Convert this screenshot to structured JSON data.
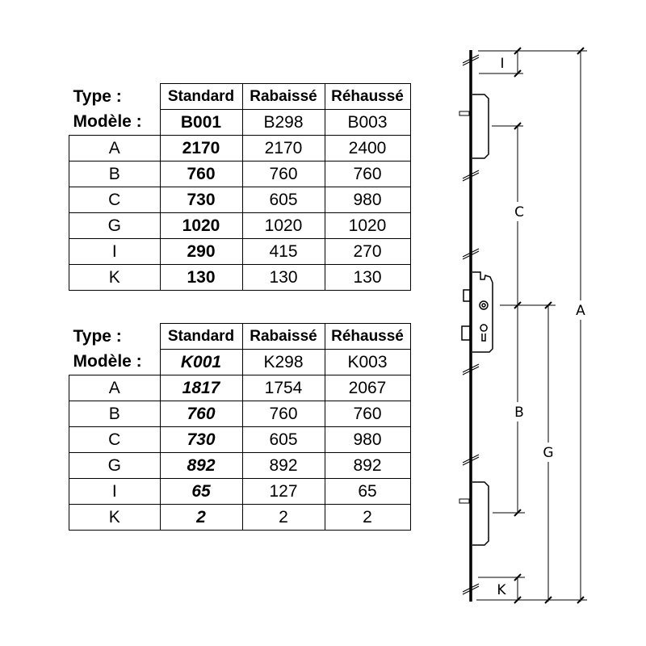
{
  "tables": [
    {
      "type_label": "Type :",
      "model_label": "Modèle :",
      "types": [
        "Standard",
        "Rabaissé",
        "Réhaussé"
      ],
      "models": [
        "B001",
        "B298",
        "B003"
      ],
      "rows": [
        {
          "dim": "A",
          "values": [
            "2170",
            "2170",
            "2400"
          ]
        },
        {
          "dim": "B",
          "values": [
            "760",
            "760",
            "760"
          ]
        },
        {
          "dim": "C",
          "values": [
            "730",
            "605",
            "980"
          ]
        },
        {
          "dim": "G",
          "values": [
            "1020",
            "1020",
            "1020"
          ]
        },
        {
          "dim": "I",
          "values": [
            "290",
            "415",
            "270"
          ]
        },
        {
          "dim": "K",
          "values": [
            "130",
            "130",
            "130"
          ]
        }
      ]
    },
    {
      "type_label": "Type :",
      "model_label": "Modèle :",
      "types": [
        "Standard",
        "Rabaissé",
        "Réhaussé"
      ],
      "models": [
        "K001",
        "K298",
        "K003"
      ],
      "rows": [
        {
          "dim": "A",
          "values": [
            "1817",
            "1754",
            "2067"
          ]
        },
        {
          "dim": "B",
          "values": [
            "760",
            "760",
            "760"
          ]
        },
        {
          "dim": "C",
          "values": [
            "730",
            "605",
            "980"
          ]
        },
        {
          "dim": "G",
          "values": [
            "892",
            "892",
            "892"
          ]
        },
        {
          "dim": "I",
          "values": [
            "65",
            "127",
            "65"
          ]
        },
        {
          "dim": "K",
          "values": [
            "2",
            "2",
            "2"
          ]
        }
      ]
    }
  ],
  "diagram": {
    "labels": {
      "I": "I",
      "C": "C",
      "A": "A",
      "B": "B",
      "G": "G",
      "K": "K"
    }
  }
}
